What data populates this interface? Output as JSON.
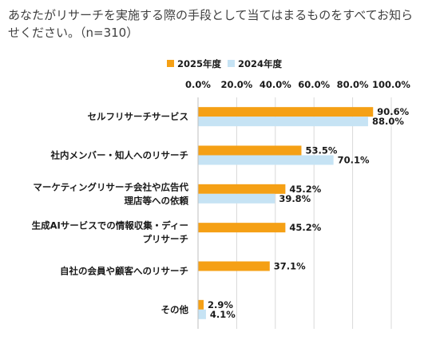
{
  "title": "あなたがリサーチを実施する際の手段として当てはまるものをすべてお知らせください。（n=310）",
  "chart_data": {
    "type": "bar",
    "orientation": "horizontal",
    "categories": [
      [
        "セルフリサーチサービス"
      ],
      [
        "社内メンバー・知人へのリサーチ"
      ],
      [
        "マーケティングリサーチ会社や広告代",
        "理店等への依頼"
      ],
      [
        "生成AIサービスでの情報収集・ディー",
        "プリサーチ"
      ],
      [
        "自社の会員や顧客へのリサーチ"
      ],
      [
        "その他"
      ]
    ],
    "series": [
      {
        "name": "2025年度",
        "color": "#F5A015",
        "values": [
          90.6,
          53.5,
          45.2,
          45.2,
          37.1,
          2.9
        ],
        "labels": [
          "90.6%",
          "53.5%",
          "45.2%",
          "45.2%",
          "37.1%",
          "2.9%"
        ]
      },
      {
        "name": "2024年度",
        "color": "#C6E3F4",
        "values": [
          88.0,
          70.1,
          39.8,
          null,
          null,
          4.1
        ],
        "labels": [
          "88.0%",
          "70.1%",
          "39.8%",
          "",
          "",
          "4.1%"
        ]
      }
    ],
    "xlim": [
      0,
      100
    ],
    "xticks": [
      "0.0%",
      "20.0%",
      "40.0%",
      "60.0%",
      "80.0%",
      "100.0%"
    ],
    "grid": true,
    "legend": "top-center"
  }
}
